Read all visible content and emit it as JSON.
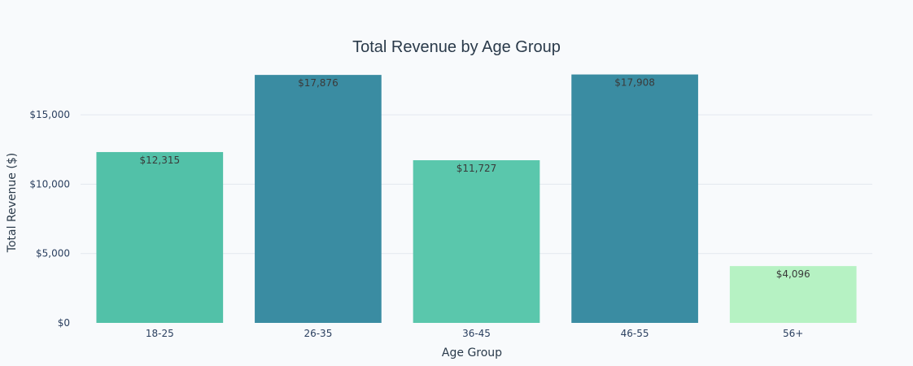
{
  "chart_data": {
    "type": "bar",
    "title": "Total Revenue by Age Group",
    "xlabel": "Age Group",
    "ylabel": "Total Revenue ($)",
    "categories": [
      "18-25",
      "26-35",
      "36-45",
      "46-55",
      "56+"
    ],
    "values": [
      12315,
      17876,
      11727,
      17908,
      4096
    ],
    "value_labels": [
      "$12,315",
      "$17,876",
      "$11,727",
      "$17,908",
      "$4,096"
    ],
    "bar_colors": [
      "#52c1a8",
      "#3a8ca2",
      "#5ac7ac",
      "#3a8ca2",
      "#b6f2c3"
    ],
    "ylim": [
      0,
      18000
    ],
    "yticks": [
      0,
      5000,
      10000,
      15000
    ],
    "ytick_labels": [
      "$0",
      "$5,000",
      "$10,000",
      "$15,000"
    ],
    "grid": true,
    "legend": "none"
  },
  "colors": {
    "background": "#f8fafc",
    "gridline": "#e3e8ef",
    "text": "#2a3f5f"
  }
}
